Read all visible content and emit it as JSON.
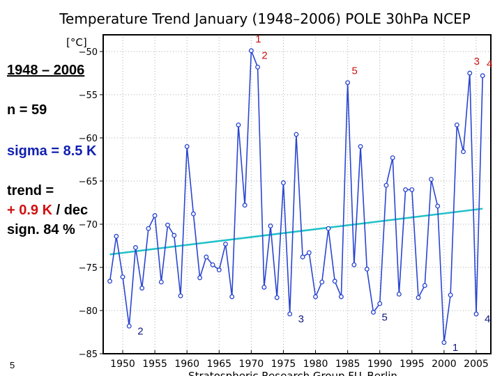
{
  "chart_data": {
    "type": "line",
    "title": "Temperature Trend January (1948–2006) POLE 30hPa NCEP",
    "ylabel": "[°C]",
    "xlabel": "",
    "xlim": [
      1947,
      2007
    ],
    "ylim": [
      -85,
      -48
    ],
    "grid": true,
    "x_ticks": [
      1950,
      1955,
      1960,
      1965,
      1970,
      1975,
      1980,
      1985,
      1990,
      1995,
      2000,
      2005
    ],
    "y_ticks": [
      -50,
      -55,
      -60,
      -65,
      -70,
      -75,
      -80,
      -85
    ],
    "series": [
      {
        "color": "#2a45d0",
        "x": [
          1948,
          1949,
          1950,
          1951,
          1952,
          1953,
          1954,
          1955,
          1956,
          1957,
          1958,
          1959,
          1960,
          1961,
          1962,
          1963,
          1964,
          1965,
          1966,
          1967,
          1968,
          1969,
          1970,
          1971,
          1972,
          1973,
          1974,
          1975,
          1976,
          1977,
          1978,
          1979,
          1980,
          1981,
          1982,
          1983,
          1984,
          1985,
          1986,
          1987,
          1988,
          1989,
          1990,
          1991,
          1992,
          1993,
          1994,
          1995,
          1996,
          1997,
          1998,
          1999,
          2000,
          2001,
          2002,
          2003,
          2004,
          2005,
          2006
        ],
        "values": [
          -76.6,
          -71.4,
          -76.1,
          -81.8,
          -72.7,
          -77.4,
          -70.5,
          -69.0,
          -76.7,
          -70.1,
          -71.3,
          -78.3,
          -61.0,
          -68.8,
          -76.2,
          -73.8,
          -74.7,
          -75.3,
          -72.3,
          -78.4,
          -58.5,
          -67.8,
          -49.9,
          -51.8,
          -77.3,
          -70.2,
          -78.5,
          -65.2,
          -80.4,
          -59.6,
          -73.8,
          -73.3,
          -78.4,
          -76.7,
          -70.5,
          -76.6,
          -78.4,
          -53.6,
          -74.7,
          -61.0,
          -75.2,
          -80.2,
          -79.2,
          -65.5,
          -62.3,
          -78.1,
          -66.0,
          -66.0,
          -78.5,
          -77.1,
          -64.8,
          -67.9,
          -83.7,
          -78.2,
          -58.5,
          -61.6,
          -52.5,
          -80.4,
          -52.8
        ]
      },
      {
        "color": "#20c0c8",
        "x": [
          1948,
          2006
        ],
        "values": [
          -73.5,
          -68.2
        ]
      }
    ],
    "annotations_warm": [
      {
        "label": "1",
        "year": 1970
      },
      {
        "label": "2",
        "year": 1971
      },
      {
        "label": "3",
        "year": 2004
      },
      {
        "label": "4",
        "year": 2006
      },
      {
        "label": "5",
        "year": 1985
      }
    ],
    "annotations_cold": [
      {
        "label": "1",
        "year": 2000
      },
      {
        "label": "2",
        "year": 1951
      },
      {
        "label": "3",
        "year": 1976
      },
      {
        "label": "4",
        "year": 2005
      },
      {
        "label": "5",
        "year": 1989
      }
    ],
    "colors": {
      "warm_rank": "#cc1111",
      "cold_rank": "#101880"
    }
  },
  "stats": {
    "period": "1948 – 2006",
    "n": "n = 59",
    "sigma": "sigma = 8.5 K",
    "trend_label": "trend =",
    "trend_value": "+ 0.9 K",
    "trend_unit": " / dec",
    "significance": "sign. 84 %"
  },
  "footer": {
    "credit": "Stratospheric Research Group FU–Berlin",
    "page": "5"
  }
}
